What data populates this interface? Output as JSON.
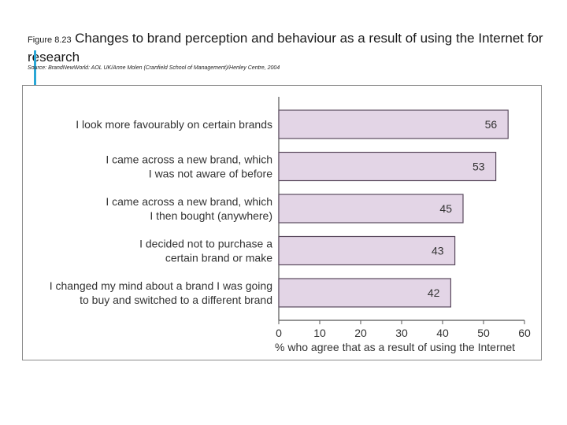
{
  "figure": {
    "label": "Figure 8.23",
    "title": "Changes to brand perception and behaviour as a result of using the Internet for research",
    "source": "Source: BrandNewWorld: AOL UK/Anne Molen (Cranfield School of Management)/Henley Centre, 2004"
  },
  "colors": {
    "bar_fill": "#e3d5e6",
    "bar_stroke": "#5a4a5e",
    "accent": "#2aa7d6"
  },
  "chart_data": {
    "type": "bar",
    "orientation": "horizontal",
    "categories": [
      [
        "I look more favourably on certain brands"
      ],
      [
        "I came across a new brand, which",
        "I was not aware of before"
      ],
      [
        "I came across a new brand, which",
        "I then bought (anywhere)"
      ],
      [
        "I decided not to purchase a",
        "certain brand or make"
      ],
      [
        "I changed my mind about a brand I was going",
        "to buy and switched to a different brand"
      ]
    ],
    "values": [
      56,
      53,
      45,
      43,
      42
    ],
    "xlabel": "% who agree that as a result of using the Internet",
    "ylabel": "",
    "xlim": [
      0,
      60
    ],
    "xticks": [
      0,
      10,
      20,
      30,
      40,
      50,
      60
    ],
    "data_labels": true,
    "grid": false,
    "legend": "none"
  }
}
